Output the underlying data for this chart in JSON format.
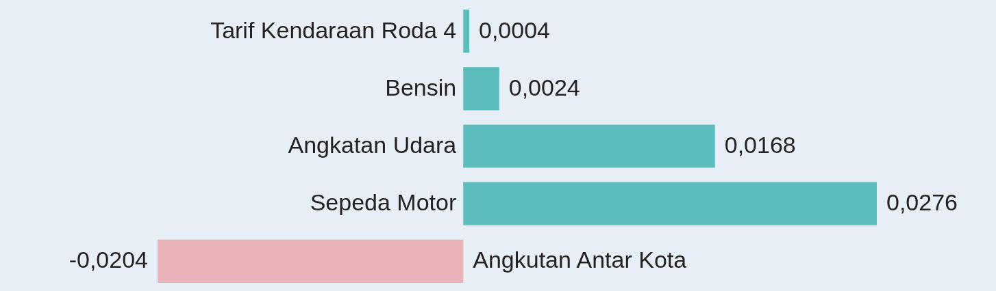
{
  "chart_data": {
    "type": "bar",
    "orientation": "horizontal",
    "categories": [
      "Tarif Kendaraan Roda 4",
      "Bensin",
      "Angkatan Udara",
      "Sepeda Motor",
      "Angkutan Antar Kota"
    ],
    "values": [
      0.0004,
      0.0024,
      0.0168,
      0.0276,
      -0.0204
    ],
    "colors": [
      "#5dbdbd",
      "#5dbdbd",
      "#5dbdbd",
      "#5dbdbd",
      "#e8b2b8"
    ],
    "value_labels": [
      "0,0004",
      "0,0024",
      "0,0168",
      "0,0276",
      "-0,0204"
    ]
  }
}
